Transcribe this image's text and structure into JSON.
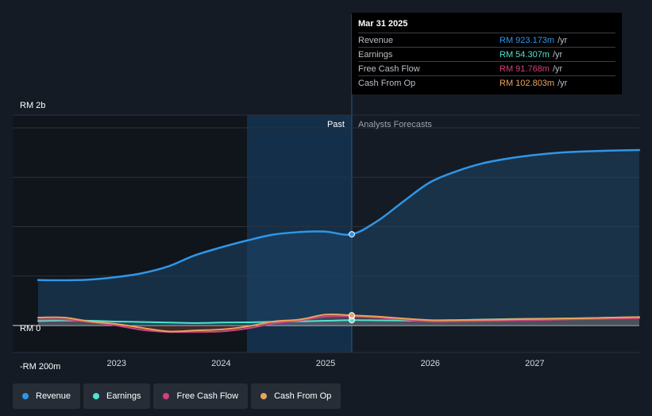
{
  "chart_data": {
    "type": "line",
    "currency": "RM",
    "x_ticks": [
      2023,
      2024,
      2025,
      2026,
      2027
    ],
    "x_range": [
      2022.25,
      2028.0
    ],
    "y_range": [
      -200,
      2000
    ],
    "y_tick_labels": [
      "RM 2b",
      "RM 0",
      "-RM 200m"
    ],
    "y_tick_values": [
      2000,
      0,
      -200
    ],
    "divider_x": 2025.25,
    "past_label": "Past",
    "forecast_label": "Analysts Forecasts",
    "series": [
      {
        "name": "Revenue",
        "color": "#2f96e8",
        "points": [
          [
            2022.25,
            460
          ],
          [
            2022.5,
            458
          ],
          [
            2022.75,
            465
          ],
          [
            2023.0,
            490
          ],
          [
            2023.25,
            530
          ],
          [
            2023.5,
            600
          ],
          [
            2023.75,
            710
          ],
          [
            2024.0,
            790
          ],
          [
            2024.25,
            860
          ],
          [
            2024.5,
            920
          ],
          [
            2024.75,
            945
          ],
          [
            2025.0,
            950
          ],
          [
            2025.25,
            923
          ],
          [
            2025.5,
            1060
          ],
          [
            2025.75,
            1260
          ],
          [
            2026.0,
            1450
          ],
          [
            2026.25,
            1560
          ],
          [
            2026.5,
            1640
          ],
          [
            2026.75,
            1690
          ],
          [
            2027.0,
            1725
          ],
          [
            2027.25,
            1750
          ],
          [
            2027.5,
            1762
          ],
          [
            2027.75,
            1770
          ],
          [
            2028.0,
            1775
          ]
        ]
      },
      {
        "name": "Earnings",
        "color": "#4fe3d1",
        "points": [
          [
            2022.25,
            45
          ],
          [
            2022.5,
            50
          ],
          [
            2022.75,
            48
          ],
          [
            2023.0,
            40
          ],
          [
            2023.25,
            35
          ],
          [
            2023.5,
            30
          ],
          [
            2023.75,
            25
          ],
          [
            2024.0,
            30
          ],
          [
            2024.25,
            32
          ],
          [
            2024.5,
            38
          ],
          [
            2024.75,
            42
          ],
          [
            2025.0,
            48
          ],
          [
            2025.25,
            54
          ],
          [
            2025.5,
            52
          ],
          [
            2025.75,
            50
          ],
          [
            2026.0,
            50
          ],
          [
            2026.25,
            55
          ],
          [
            2026.5,
            60
          ],
          [
            2026.75,
            65
          ],
          [
            2027.0,
            68
          ],
          [
            2027.25,
            70
          ],
          [
            2027.5,
            75
          ],
          [
            2027.75,
            80
          ],
          [
            2028.0,
            82
          ]
        ]
      },
      {
        "name": "Free Cash Flow",
        "color": "#d2407e",
        "points": [
          [
            2022.25,
            60
          ],
          [
            2022.5,
            60
          ],
          [
            2022.75,
            35
          ],
          [
            2023.0,
            0
          ],
          [
            2023.25,
            -45
          ],
          [
            2023.5,
            -65
          ],
          [
            2023.75,
            -65
          ],
          [
            2024.0,
            -60
          ],
          [
            2024.25,
            -30
          ],
          [
            2024.5,
            20
          ],
          [
            2024.75,
            50
          ],
          [
            2025.0,
            90
          ],
          [
            2025.25,
            92
          ],
          [
            2025.5,
            80
          ],
          [
            2025.75,
            60
          ],
          [
            2026.0,
            40
          ],
          [
            2026.25,
            42
          ],
          [
            2026.5,
            45
          ],
          [
            2026.75,
            50
          ],
          [
            2027.0,
            55
          ],
          [
            2027.25,
            60
          ],
          [
            2027.5,
            65
          ],
          [
            2027.75,
            70
          ],
          [
            2028.0,
            75
          ]
        ]
      },
      {
        "name": "Cash From Op",
        "color": "#e9a45b",
        "points": [
          [
            2022.25,
            80
          ],
          [
            2022.5,
            80
          ],
          [
            2022.75,
            40
          ],
          [
            2023.0,
            15
          ],
          [
            2023.25,
            -25
          ],
          [
            2023.5,
            -60
          ],
          [
            2023.75,
            -50
          ],
          [
            2024.0,
            -40
          ],
          [
            2024.25,
            -10
          ],
          [
            2024.5,
            40
          ],
          [
            2024.75,
            60
          ],
          [
            2025.0,
            110
          ],
          [
            2025.25,
            103
          ],
          [
            2025.5,
            90
          ],
          [
            2025.75,
            70
          ],
          [
            2026.0,
            55
          ],
          [
            2026.25,
            55
          ],
          [
            2026.5,
            58
          ],
          [
            2026.75,
            62
          ],
          [
            2027.0,
            66
          ],
          [
            2027.25,
            70
          ],
          [
            2027.5,
            75
          ],
          [
            2027.75,
            80
          ],
          [
            2028.0,
            85
          ]
        ]
      }
    ]
  },
  "tooltip": {
    "date": "Mar 31 2025",
    "rows": [
      {
        "label": "Revenue",
        "value": "RM 923.173m",
        "unit": "/yr",
        "color": "#2f96e8"
      },
      {
        "label": "Earnings",
        "value": "RM 54.307m",
        "unit": "/yr",
        "color": "#4fe3d1"
      },
      {
        "label": "Free Cash Flow",
        "value": "RM 91.768m",
        "unit": "/yr",
        "color": "#d2407e"
      },
      {
        "label": "Cash From Op",
        "value": "RM 102.803m",
        "unit": "/yr",
        "color": "#e9a45b"
      }
    ]
  },
  "legend": [
    {
      "label": "Revenue",
      "color": "#2f96e8"
    },
    {
      "label": "Earnings",
      "color": "#4fe3d1"
    },
    {
      "label": "Free Cash Flow",
      "color": "#d2407e"
    },
    {
      "label": "Cash From Op",
      "color": "#e9a45b"
    }
  ]
}
